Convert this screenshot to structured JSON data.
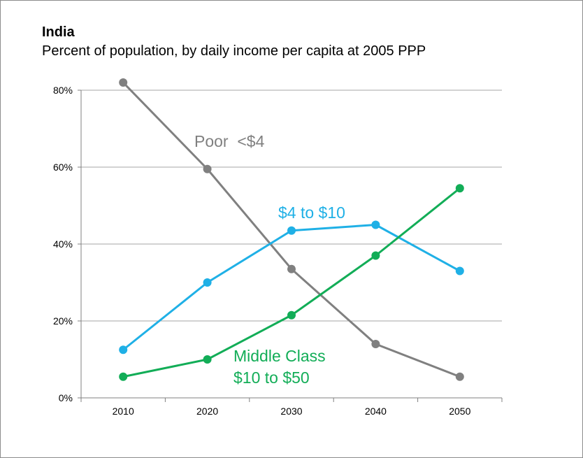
{
  "chart_data": {
    "type": "line",
    "title": "India",
    "subtitle": "Percent of population, by daily income per capita at 2005 PPP",
    "x": [
      2010,
      2020,
      2030,
      2040,
      2050
    ],
    "x_tick_labels": [
      "2010",
      "2020",
      "2030",
      "2040",
      "2050"
    ],
    "y_tick_values": [
      0,
      20,
      40,
      60,
      80
    ],
    "y_tick_labels": [
      "0%",
      "20%",
      "40%",
      "60%",
      "80%"
    ],
    "ylim": [
      0,
      80
    ],
    "grid": "horizontal",
    "series": [
      {
        "name": "Poor <$4",
        "label_lines": [
          "Poor  <$4"
        ],
        "color": "#808080",
        "values": [
          82,
          59.5,
          33.5,
          14,
          5.5
        ]
      },
      {
        "name": "$4 to $10",
        "label_lines": [
          "$4 to $10"
        ],
        "color": "#1fb0e6",
        "values": [
          12.5,
          30,
          43.5,
          45,
          33
        ]
      },
      {
        "name": "Middle Class $10 to $50",
        "label_lines": [
          "Middle Class",
          "$10 to $50"
        ],
        "color": "#12ad57",
        "values": [
          5.5,
          10,
          21.5,
          37,
          54.5
        ]
      }
    ]
  }
}
